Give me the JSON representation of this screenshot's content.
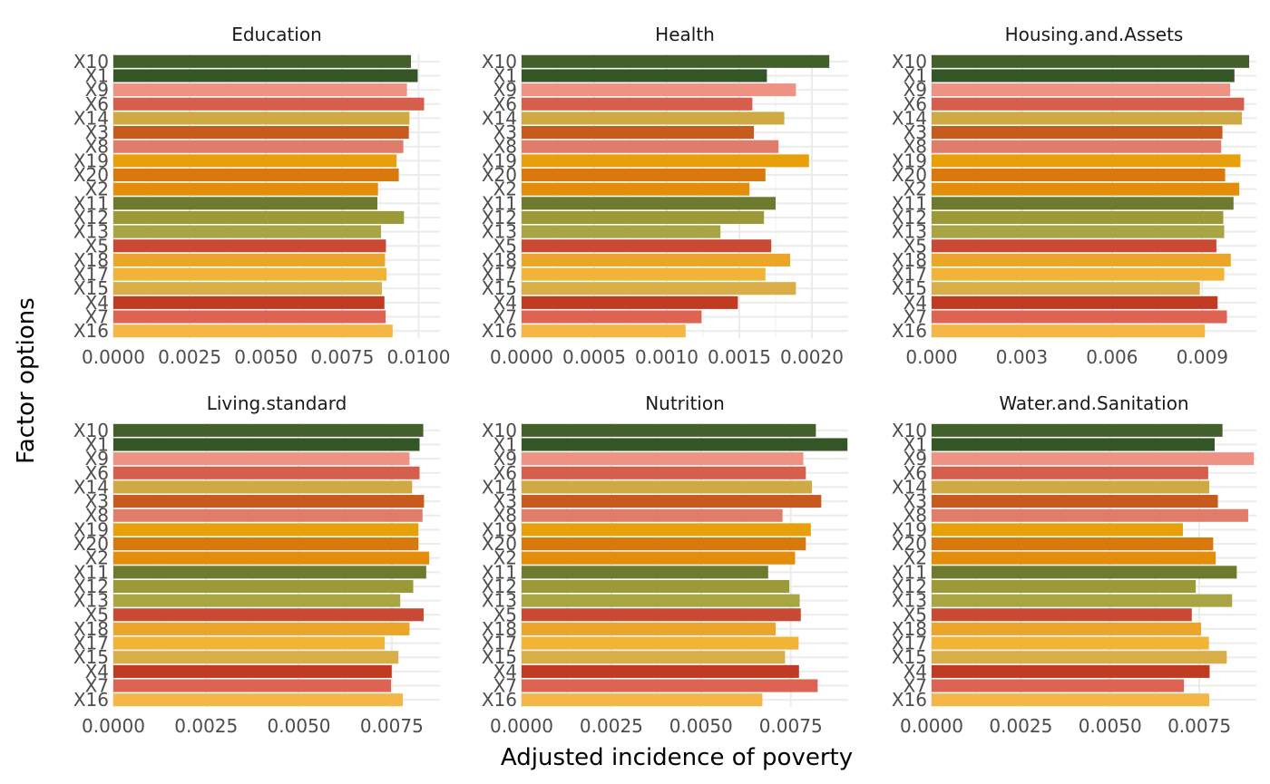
{
  "chart_data": {
    "type": "bar",
    "orientation": "horizontal",
    "layout": "facet_wrap",
    "ncol": 3,
    "xlabel": "Adjusted incidence of poverty",
    "ylabel": "Factor options",
    "grid": true,
    "categories": [
      "X10",
      "X1",
      "X9",
      "X6",
      "X14",
      "X3",
      "X8",
      "X19",
      "X20",
      "X2",
      "X11",
      "X12",
      "X13",
      "X5",
      "X18",
      "X17",
      "X15",
      "X4",
      "X7",
      "X16"
    ],
    "category_colors": {
      "X10": "#43602a",
      "X1": "#345526",
      "X9": "#ee9384",
      "X6": "#d65e4c",
      "X14": "#cfaa42",
      "X3": "#c75a1d",
      "X8": "#e07c6a",
      "X19": "#e8a00a",
      "X20": "#d9780d",
      "X2": "#e48d0a",
      "X11": "#6e7a2e",
      "X12": "#9c9a38",
      "X13": "#aaa544",
      "X5": "#c84a35",
      "X18": "#eba629",
      "X17": "#f1b436",
      "X15": "#d9ae48",
      "X4": "#c13a22",
      "X7": "#dd6452",
      "X16": "#f4b747"
    },
    "panels": [
      {
        "title": "Education",
        "xlim": [
          0,
          0.0107
        ],
        "ticks": [
          0,
          0.0025,
          0.005,
          0.0075,
          0.01
        ],
        "tick_labels": [
          "0.0000",
          "0.0025",
          "0.0050",
          "0.0075",
          "0.0100"
        ],
        "values": [
          0.00975,
          0.00997,
          0.00962,
          0.01018,
          0.0097,
          0.00968,
          0.0095,
          0.00928,
          0.00935,
          0.00867,
          0.00865,
          0.00952,
          0.00877,
          0.00893,
          0.0089,
          0.00895,
          0.0088,
          0.00888,
          0.00892,
          0.00915
        ]
      },
      {
        "title": "Health",
        "xlim": [
          0,
          0.00225
        ],
        "ticks": [
          0,
          0.0005,
          0.001,
          0.0015,
          0.002
        ],
        "tick_labels": [
          "0.0000",
          "0.0005",
          "0.0010",
          "0.0015",
          "0.0020"
        ],
        "values": [
          0.00212,
          0.00169,
          0.00189,
          0.00159,
          0.00181,
          0.0016,
          0.00177,
          0.00198,
          0.00168,
          0.00157,
          0.00175,
          0.00167,
          0.00137,
          0.00172,
          0.00185,
          0.00168,
          0.00189,
          0.00149,
          0.00124,
          0.00113
        ]
      },
      {
        "title": "Housing.and.Assets",
        "xlim": [
          0,
          0.0108
        ],
        "ticks": [
          0,
          0.003,
          0.006,
          0.009
        ],
        "tick_labels": [
          "0.000",
          "0.003",
          "0.006",
          "0.009"
        ],
        "values": [
          0.01056,
          0.01007,
          0.00993,
          0.01039,
          0.01032,
          0.00967,
          0.00963,
          0.01027,
          0.00976,
          0.01023,
          0.01004,
          0.0097,
          0.00973,
          0.00947,
          0.00995,
          0.00973,
          0.00892,
          0.00951,
          0.00982,
          0.00909
        ]
      },
      {
        "title": "Living.standard",
        "xlim": [
          0,
          0.0088
        ],
        "ticks": [
          0,
          0.0025,
          0.005,
          0.0075
        ],
        "tick_labels": [
          "0.0000",
          "0.0025",
          "0.0050",
          "0.0075"
        ],
        "values": [
          0.00835,
          0.00825,
          0.00798,
          0.00825,
          0.00805,
          0.00837,
          0.00833,
          0.00822,
          0.00822,
          0.00851,
          0.00843,
          0.00808,
          0.00773,
          0.00836,
          0.00798,
          0.00731,
          0.00768,
          0.0075,
          0.00748,
          0.0078
        ]
      },
      {
        "title": "Nutrition",
        "xlim": [
          0,
          0.0091
        ],
        "ticks": [
          0,
          0.0025,
          0.005,
          0.0075
        ],
        "tick_labels": [
          "0.0000",
          "0.0025",
          "0.0050",
          "0.0075"
        ],
        "values": [
          0.0082,
          0.00908,
          0.00785,
          0.00792,
          0.00809,
          0.00835,
          0.00727,
          0.00806,
          0.00792,
          0.00762,
          0.00687,
          0.00746,
          0.00775,
          0.00778,
          0.00708,
          0.00772,
          0.00734,
          0.00773,
          0.00825,
          0.00671
        ]
      },
      {
        "title": "Water.and.Sanitation",
        "xlim": [
          0,
          0.0091
        ],
        "ticks": [
          0,
          0.0025,
          0.005,
          0.0075
        ],
        "tick_labels": [
          "0.0000",
          "0.0025",
          "0.0050",
          "0.0075"
        ],
        "values": [
          0.00815,
          0.00793,
          0.00903,
          0.00775,
          0.00778,
          0.00802,
          0.00887,
          0.00704,
          0.00789,
          0.00796,
          0.00855,
          0.0074,
          0.00842,
          0.00729,
          0.00755,
          0.00777,
          0.00827,
          0.00779,
          0.00707,
          0.00778
        ]
      }
    ]
  }
}
